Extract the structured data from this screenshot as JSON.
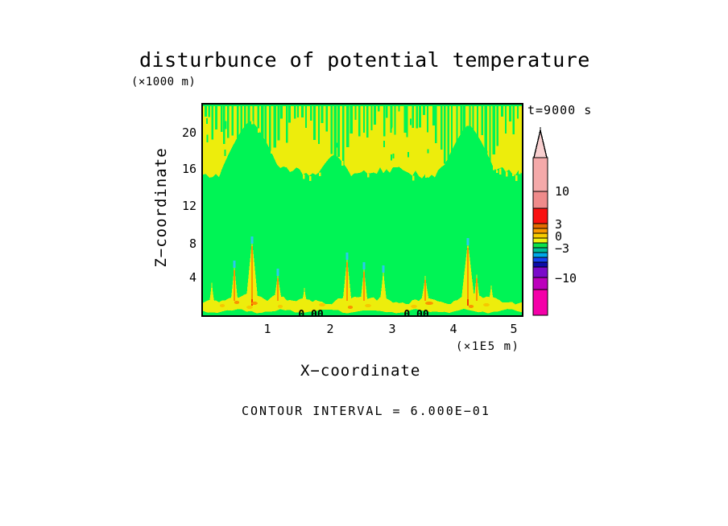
{
  "ui": {
    "title": "disturbunce of potential temperature",
    "y_axis_unit": "(×1000 m)",
    "time_label": "t=9000 s",
    "y_axis_label": "Z−coordinate",
    "x_axis_label": "X−coordinate",
    "x_axis_unit": "(×1E5 m)",
    "footer": "CONTOUR INTERVAL = 6.000E−01",
    "y_ticks": [
      {
        "label": "20",
        "y": 165
      },
      {
        "label": "16",
        "y": 210
      },
      {
        "label": "12",
        "y": 256
      },
      {
        "label": "8",
        "y": 303
      },
      {
        "label": "4",
        "y": 345
      }
    ],
    "x_ticks": [
      {
        "label": "1",
        "x": 332
      },
      {
        "label": "2",
        "x": 410
      },
      {
        "label": "3",
        "x": 487
      },
      {
        "label": "4",
        "x": 563
      },
      {
        "label": "5",
        "x": 638
      }
    ]
  },
  "chart_data": {
    "type": "heatmap",
    "subtype": "filled-contour",
    "title": "disturbunce of potential temperature",
    "xlabel": "X−coordinate (×1E5 m)",
    "ylabel": "Z−coordinate (×1000 m)",
    "time": "t=9000 s",
    "x_range": [
      0,
      5.15
    ],
    "y_range": [
      0,
      23.3
    ],
    "x_tick_values": [
      1,
      2,
      3,
      4,
      5
    ],
    "y_tick_values": [
      20,
      16,
      12,
      8,
      4
    ],
    "contour_interval": 0.6,
    "contour_interval_label": "CONTOUR INTERVAL = 6.000E−01",
    "description": "Yellow positive-disturbance layer aloft (z≈16-23 km) with green streaks descending from top and two deep green intrusions; near-zero green field at mid-levels; wavy yellow layer near surface with narrow plumes topped by cyan and orange cores; 0.00 contour labels at the bottom edge.",
    "colorbar": {
      "arrow_color": "#F8CFCF",
      "segments": [
        {
          "color": "#F4A9A9",
          "h": 42
        },
        {
          "color": "#EF8B8B",
          "h": 21
        },
        {
          "color": "#F91111",
          "h": 19
        },
        {
          "color": "#E56C00",
          "h": 6
        },
        {
          "color": "#FA9800",
          "h": 6
        },
        {
          "color": "#F8CC00",
          "h": 6
        },
        {
          "color": "#F0F014",
          "h": 6
        },
        {
          "color": "#0CE24A",
          "h": 6
        },
        {
          "color": "#00BE96",
          "h": 6
        },
        {
          "color": "#00A8E8",
          "h": 6
        },
        {
          "color": "#1543F2",
          "h": 6
        },
        {
          "color": "#0D0DA8",
          "h": 6
        },
        {
          "color": "#7A0ACA",
          "h": 13
        },
        {
          "color": "#BC00BC",
          "h": 15
        },
        {
          "color": "#F400A8",
          "h": 32
        }
      ],
      "labels": [
        {
          "text": "10",
          "y": 80
        },
        {
          "text": "3",
          "y": 121
        },
        {
          "text": "0",
          "y": 136
        },
        {
          "text": "−3",
          "y": 151
        },
        {
          "text": "−10",
          "y": 188
        }
      ]
    },
    "field": {
      "seed": 42,
      "colors": {
        "green": "#00F455",
        "yellow": "#EDED0C",
        "orange": "#FA9400",
        "gold": "#F6C800",
        "cyan": "#2AC8F0",
        "red": "#F53C00"
      },
      "top_band": {
        "base": 86,
        "wave_amp": 5,
        "wave_len": 21,
        "noise": 9,
        "top_strip": 2
      },
      "streaks": {
        "count": 78,
        "spacing": 5.05,
        "min_len": 8,
        "max_extra": 55,
        "wedge_boost": 58
      },
      "wedges": [
        {
          "x": 59,
          "apex": 20,
          "halfw": 38
        },
        {
          "x": 163,
          "apex": 62,
          "halfw": 20
        },
        {
          "x": 302,
          "apex": 74,
          "halfw": 14
        },
        {
          "x": 330,
          "apex": 25,
          "halfw": 34
        }
      ],
      "bottom_band": {
        "base": 246,
        "noise": 5
      },
      "bottom_strip": {
        "base": 257,
        "amp": 2
      },
      "spikes": [
        {
          "x": 11,
          "tip": 218,
          "w": 4,
          "core": false,
          "cyan": false,
          "mound": 4
        },
        {
          "x": 39,
          "tip": 198,
          "w": 5,
          "core": true,
          "cyan": true,
          "mound": 8
        },
        {
          "x": 61,
          "tip": 168,
          "w": 8,
          "core": true,
          "cyan": true,
          "mound": 12
        },
        {
          "x": 93,
          "tip": 208,
          "w": 6,
          "core": true,
          "cyan": true,
          "mound": 9
        },
        {
          "x": 126,
          "tip": 225,
          "w": 5,
          "core": false,
          "cyan": false,
          "mound": 5
        },
        {
          "x": 179,
          "tip": 188,
          "w": 6,
          "core": true,
          "cyan": true,
          "mound": 9
        },
        {
          "x": 200,
          "tip": 200,
          "w": 5,
          "core": true,
          "cyan": true,
          "mound": 6
        },
        {
          "x": 224,
          "tip": 204,
          "w": 5,
          "core": false,
          "cyan": true,
          "mound": 6
        },
        {
          "x": 276,
          "tip": 210,
          "w": 6,
          "core": true,
          "cyan": false,
          "mound": 7
        },
        {
          "x": 329,
          "tip": 170,
          "w": 9,
          "core": true,
          "cyan": true,
          "mound": 12
        },
        {
          "x": 340,
          "tip": 208,
          "w": 5,
          "core": true,
          "cyan": false,
          "mound": 5
        },
        {
          "x": 358,
          "tip": 222,
          "w": 5,
          "core": false,
          "cyan": false,
          "mound": 5
        }
      ],
      "speckles": [
        {
          "x": 24,
          "y": 250,
          "c": "gold"
        },
        {
          "x": 42,
          "y": 246,
          "c": "orange"
        },
        {
          "x": 58,
          "y": 252,
          "c": "gold"
        },
        {
          "x": 64,
          "y": 247,
          "c": "orange"
        },
        {
          "x": 96,
          "y": 251,
          "c": "gold"
        },
        {
          "x": 148,
          "y": 249,
          "c": "gold"
        },
        {
          "x": 183,
          "y": 252,
          "c": "orange"
        },
        {
          "x": 205,
          "y": 250,
          "c": "gold"
        },
        {
          "x": 262,
          "y": 251,
          "c": "gold"
        },
        {
          "x": 281,
          "y": 247,
          "c": "orange"
        },
        {
          "x": 333,
          "y": 251,
          "c": "orange"
        },
        {
          "x": 352,
          "y": 249,
          "c": "gold"
        }
      ],
      "zero_labels": [
        {
          "text": "0.00",
          "x": 134
        },
        {
          "text": "0.00",
          "x": 265
        }
      ]
    }
  }
}
